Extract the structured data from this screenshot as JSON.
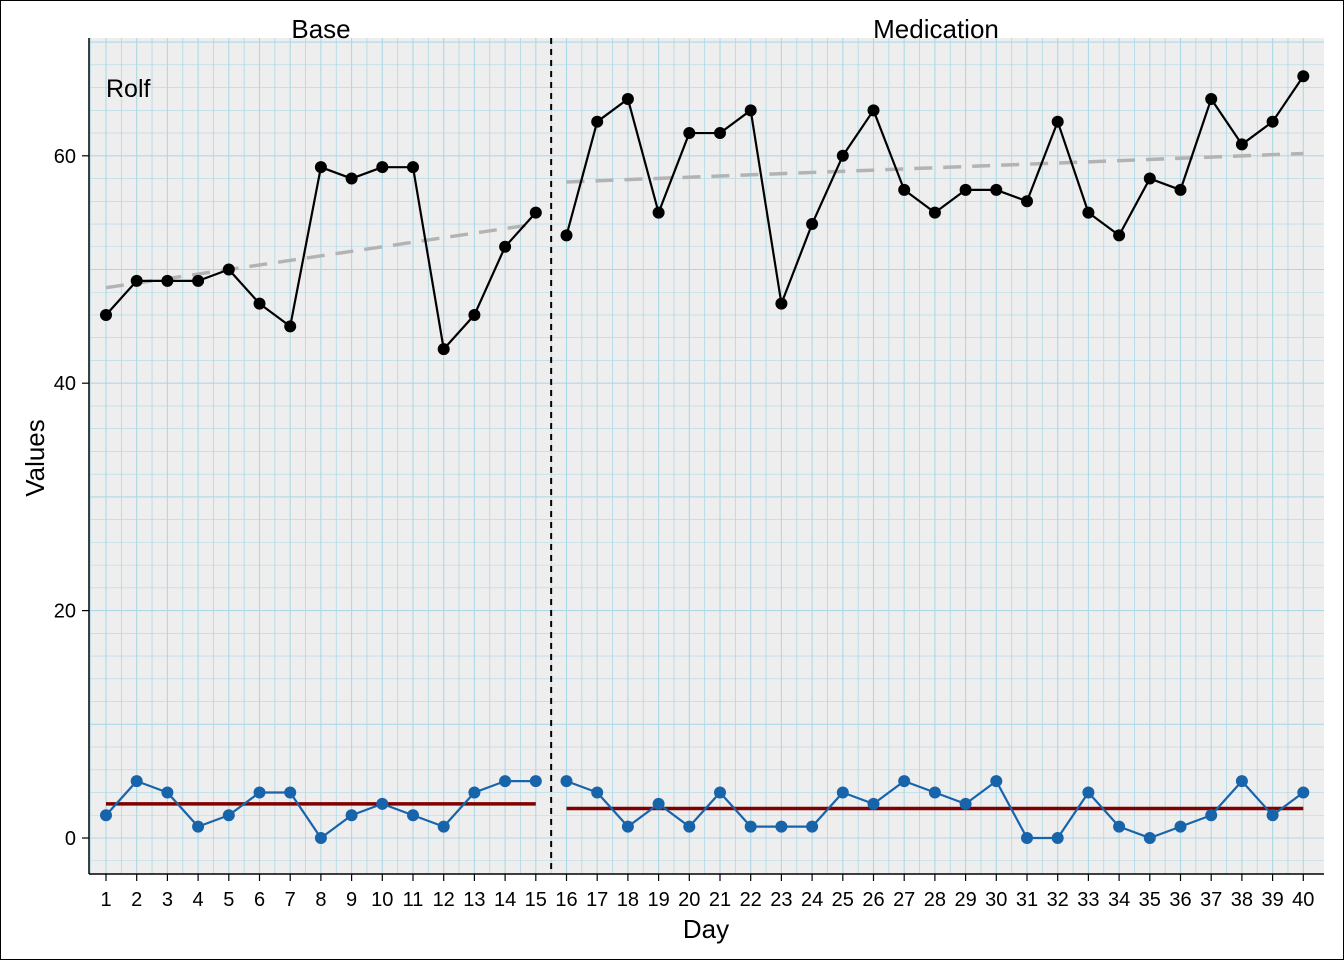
{
  "chart_data": {
    "type": "line",
    "title": "",
    "xlabel": "Day",
    "ylabel": "Values",
    "case_label": "Rolf",
    "x": [
      1,
      2,
      3,
      4,
      5,
      6,
      7,
      8,
      9,
      10,
      11,
      12,
      13,
      14,
      15,
      16,
      17,
      18,
      19,
      20,
      21,
      22,
      23,
      24,
      25,
      26,
      27,
      28,
      29,
      30,
      31,
      32,
      33,
      34,
      35,
      36,
      37,
      38,
      39,
      40
    ],
    "ylim": [
      -3,
      70
    ],
    "y_ticks": [
      0,
      20,
      40,
      60
    ],
    "grid": true,
    "phases": [
      {
        "label": "Base",
        "start": 1,
        "end": 15
      },
      {
        "label": "Medication",
        "start": 16,
        "end": 40
      }
    ],
    "series": [
      {
        "key": "main",
        "color": "#000000",
        "values": [
          46,
          49,
          49,
          49,
          50,
          47,
          45,
          59,
          58,
          59,
          59,
          43,
          46,
          52,
          55,
          53,
          63,
          65,
          55,
          62,
          62,
          64,
          47,
          54,
          60,
          64,
          57,
          55,
          57,
          57,
          56,
          63,
          55,
          53,
          58,
          57,
          65,
          61,
          63,
          67
        ]
      },
      {
        "key": "secondary",
        "color": "#1764ab",
        "values": [
          2,
          5,
          4,
          1,
          2,
          4,
          4,
          0,
          2,
          3,
          2,
          1,
          4,
          5,
          5,
          5,
          4,
          1,
          3,
          1,
          4,
          1,
          1,
          1,
          4,
          3,
          5,
          4,
          3,
          5,
          0,
          0,
          4,
          1,
          0,
          1,
          2,
          5,
          2,
          4
        ]
      }
    ],
    "trend_lines": [
      {
        "phase": "Base",
        "x": [
          1,
          15
        ],
        "y": [
          48.4,
          54.0
        ],
        "color": "#b3b3b3",
        "style": "dashed"
      },
      {
        "phase": "Medication",
        "x": [
          16,
          40
        ],
        "y": [
          57.7,
          60.2
        ],
        "color": "#b3b3b3",
        "style": "dashed"
      }
    ],
    "mean_lines": [
      {
        "phase": "Base",
        "x": [
          1,
          15
        ],
        "y": 3.0,
        "color": "#800000"
      },
      {
        "phase": "Medication",
        "x": [
          16,
          40
        ],
        "y": 2.6,
        "color": "#800000"
      }
    ],
    "colors": {
      "panel_background": "#eeeeee",
      "grid": "#add8e6",
      "phase_separator": "#000000"
    }
  }
}
